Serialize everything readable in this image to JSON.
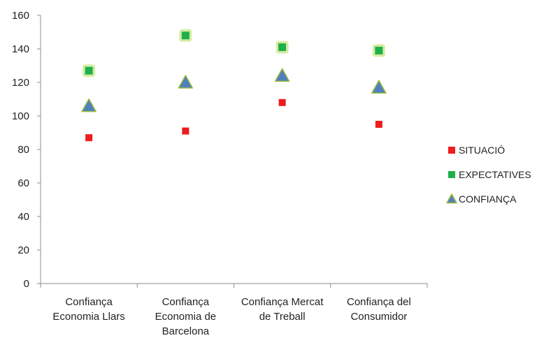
{
  "chart_data": {
    "type": "scatter",
    "categories": [
      [
        "Confiança",
        "Economia Llars"
      ],
      [
        "Confiança",
        "Economia de",
        "Barcelona"
      ],
      [
        "Confiança Mercat",
        "de Treball"
      ],
      [
        "Confiança del",
        "Consumidor"
      ]
    ],
    "ylim": [
      0,
      160
    ],
    "yticks": [
      0,
      20,
      40,
      60,
      80,
      100,
      120,
      140,
      160
    ],
    "grid": false,
    "legend_position": "right",
    "series": [
      {
        "name": "SITUACIÓ",
        "marker": "square",
        "color": "#ee1c1c",
        "values": [
          87,
          91,
          108,
          95
        ]
      },
      {
        "name": "EXPECTATIVES",
        "marker": "square-glow",
        "color": "#1db04a",
        "values": [
          127,
          148,
          141,
          139
        ]
      },
      {
        "name": "CONFIANÇA",
        "marker": "triangle",
        "color": "#4f81bd",
        "values": [
          106,
          120,
          124,
          117
        ]
      }
    ]
  }
}
